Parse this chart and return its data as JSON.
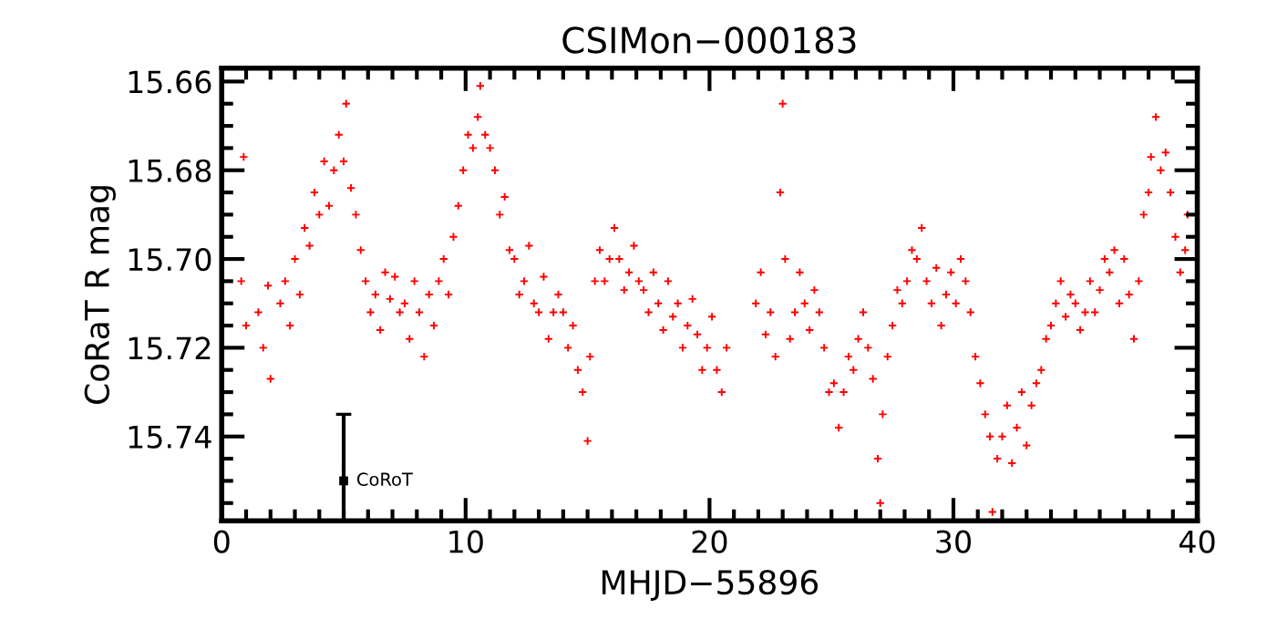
{
  "chart_data": {
    "type": "scatter",
    "title": "CSIMon−000183",
    "xlabel": "MHJD−55896",
    "ylabel": "CoRaT R mag",
    "xlim": [
      0,
      40
    ],
    "ylim": [
      15.759,
      15.657
    ],
    "xticks": [
      0,
      {
        "value": 1,
        "label": null
      },
      {
        "value": 2,
        "label": null
      },
      {
        "value": 3,
        "label": null
      },
      {
        "value": 4,
        "label": null
      },
      {
        "value": 5,
        "label": null
      },
      {
        "value": 6,
        "label": null
      },
      {
        "value": 7,
        "label": null
      },
      {
        "value": 8,
        "label": null
      },
      {
        "value": 9,
        "label": null
      },
      10,
      {
        "value": 11,
        "label": null
      },
      {
        "value": 12,
        "label": null
      },
      {
        "value": 13,
        "label": null
      },
      {
        "value": 14,
        "label": null
      },
      {
        "value": 15,
        "label": null
      },
      {
        "value": 16,
        "label": null
      },
      {
        "value": 17,
        "label": null
      },
      {
        "value": 18,
        "label": null
      },
      {
        "value": 19,
        "label": null
      },
      20,
      {
        "value": 21,
        "label": null
      },
      {
        "value": 22,
        "label": null
      },
      {
        "value": 23,
        "label": null
      },
      {
        "value": 24,
        "label": null
      },
      {
        "value": 25,
        "label": null
      },
      {
        "value": 26,
        "label": null
      },
      {
        "value": 27,
        "label": null
      },
      {
        "value": 28,
        "label": null
      },
      {
        "value": 29,
        "label": null
      },
      30,
      {
        "value": 31,
        "label": null
      },
      {
        "value": 32,
        "label": null
      },
      {
        "value": 33,
        "label": null
      },
      {
        "value": 34,
        "label": null
      },
      {
        "value": 35,
        "label": null
      },
      {
        "value": 36,
        "label": null
      },
      {
        "value": 37,
        "label": null
      },
      {
        "value": 38,
        "label": null
      },
      {
        "value": 39,
        "label": null
      },
      40
    ],
    "yticks": [
      15.66,
      {
        "value": 15.665,
        "label": null
      },
      {
        "value": 15.67,
        "label": null
      },
      {
        "value": 15.675,
        "label": null
      },
      15.68,
      {
        "value": 15.685,
        "label": null
      },
      {
        "value": 15.69,
        "label": null
      },
      {
        "value": 15.695,
        "label": null
      },
      {
        "value": 15.7,
        "label": "15.70"
      },
      {
        "value": 15.705,
        "label": null
      },
      {
        "value": 15.71,
        "label": null
      },
      {
        "value": 15.715,
        "label": null
      },
      15.72,
      {
        "value": 15.725,
        "label": null
      },
      {
        "value": 15.73,
        "label": null
      },
      {
        "value": 15.735,
        "label": null
      },
      15.74,
      {
        "value": 15.745,
        "label": null
      },
      {
        "value": 15.75,
        "label": null
      },
      {
        "value": 15.755,
        "label": null
      }
    ],
    "grid": false,
    "legend": false,
    "marker": "cross",
    "series": [
      {
        "color": "#ff0000",
        "x": [
          0.8,
          0.9,
          1.0,
          1.5,
          1.7,
          1.9,
          2.0,
          2.4,
          2.6,
          2.8,
          3.0,
          3.2,
          3.4,
          3.6,
          3.8,
          4.0,
          4.2,
          4.4,
          4.6,
          4.8,
          5.0,
          5.1,
          5.3,
          5.5,
          5.7,
          5.9,
          6.1,
          6.3,
          6.5,
          6.7,
          6.9,
          7.1,
          7.3,
          7.5,
          7.7,
          7.9,
          8.1,
          8.3,
          8.5,
          8.7,
          8.9,
          9.1,
          9.3,
          9.5,
          9.7,
          9.9,
          10.1,
          10.3,
          10.5,
          10.6,
          10.8,
          11.0,
          11.2,
          11.4,
          11.6,
          11.8,
          12.0,
          12.2,
          12.4,
          12.6,
          12.8,
          13.0,
          13.2,
          13.4,
          13.6,
          13.8,
          14.0,
          14.2,
          14.4,
          14.6,
          14.8,
          15.0,
          15.1,
          15.3,
          15.5,
          15.7,
          15.9,
          16.1,
          16.3,
          16.5,
          16.7,
          16.9,
          17.1,
          17.3,
          17.5,
          17.7,
          17.9,
          18.1,
          18.3,
          18.5,
          18.7,
          18.9,
          19.1,
          19.3,
          19.5,
          19.7,
          19.9,
          20.1,
          20.3,
          20.5,
          20.7,
          21.9,
          22.1,
          22.3,
          22.5,
          22.7,
          22.9,
          23.0,
          23.1,
          23.3,
          23.5,
          23.7,
          23.9,
          24.1,
          24.3,
          24.5,
          24.7,
          24.9,
          25.1,
          25.3,
          25.5,
          25.7,
          25.9,
          26.1,
          26.3,
          26.5,
          26.7,
          26.9,
          27.0,
          27.1,
          27.3,
          27.5,
          27.7,
          27.9,
          28.1,
          28.3,
          28.5,
          28.7,
          28.9,
          29.1,
          29.3,
          29.5,
          29.7,
          29.9,
          30.1,
          30.3,
          30.5,
          30.7,
          30.9,
          31.1,
          31.3,
          31.5,
          31.6,
          31.8,
          32.0,
          32.2,
          32.4,
          32.6,
          32.8,
          33.0,
          33.2,
          33.4,
          33.6,
          33.8,
          34.0,
          34.2,
          34.4,
          34.6,
          34.8,
          35.0,
          35.2,
          35.4,
          35.6,
          35.8,
          36.0,
          36.2,
          36.4,
          36.6,
          36.8,
          37.0,
          37.2,
          37.4,
          37.6,
          37.8,
          38.0,
          38.1,
          38.3,
          38.5,
          38.7,
          38.9,
          39.1,
          39.3,
          39.5,
          39.6
        ],
        "values": [
          15.705,
          15.677,
          15.715,
          15.712,
          15.72,
          15.706,
          15.727,
          15.71,
          15.705,
          15.715,
          15.7,
          15.708,
          15.693,
          15.697,
          15.685,
          15.69,
          15.678,
          15.688,
          15.68,
          15.672,
          15.678,
          15.665,
          15.684,
          15.69,
          15.698,
          15.705,
          15.712,
          15.708,
          15.716,
          15.703,
          15.709,
          15.704,
          15.712,
          15.71,
          15.718,
          15.705,
          15.712,
          15.722,
          15.708,
          15.715,
          15.705,
          15.7,
          15.708,
          15.695,
          15.688,
          15.68,
          15.672,
          15.675,
          15.668,
          15.661,
          15.672,
          15.675,
          15.68,
          15.69,
          15.686,
          15.698,
          15.7,
          15.708,
          15.705,
          15.697,
          15.71,
          15.712,
          15.704,
          15.718,
          15.712,
          15.708,
          15.712,
          15.72,
          15.715,
          15.725,
          15.73,
          15.741,
          15.722,
          15.705,
          15.698,
          15.705,
          15.7,
          15.693,
          15.7,
          15.707,
          15.703,
          15.697,
          15.705,
          15.707,
          15.712,
          15.703,
          15.71,
          15.716,
          15.705,
          15.713,
          15.71,
          15.72,
          15.715,
          15.709,
          15.717,
          15.725,
          15.72,
          15.713,
          15.725,
          15.73,
          15.72,
          15.71,
          15.703,
          15.717,
          15.712,
          15.722,
          15.685,
          15.665,
          15.7,
          15.718,
          15.712,
          15.703,
          15.71,
          15.716,
          15.707,
          15.712,
          15.72,
          15.73,
          15.728,
          15.738,
          15.73,
          15.722,
          15.725,
          15.718,
          15.712,
          15.72,
          15.727,
          15.745,
          15.755,
          15.735,
          15.722,
          15.715,
          15.707,
          15.71,
          15.705,
          15.698,
          15.7,
          15.693,
          15.705,
          15.71,
          15.702,
          15.715,
          15.708,
          15.703,
          15.71,
          15.7,
          15.705,
          15.712,
          15.722,
          15.728,
          15.735,
          15.74,
          15.757,
          15.745,
          15.74,
          15.733,
          15.746,
          15.738,
          15.73,
          15.742,
          15.733,
          15.728,
          15.725,
          15.718,
          15.715,
          15.71,
          15.705,
          15.713,
          15.708,
          15.71,
          15.716,
          15.712,
          15.705,
          15.712,
          15.707,
          15.7,
          15.703,
          15.698,
          15.71,
          15.7,
          15.708,
          15.718,
          15.705,
          15.69,
          15.685,
          15.677,
          15.668,
          15.68,
          15.676,
          15.685,
          15.695,
          15.703,
          15.698,
          15.69
        ]
      },
      {
        "name": "CoRoT",
        "color": "#000000",
        "x": [
          5
        ],
        "values": [
          15.75
        ],
        "marker": "square",
        "errors": [
          [
            15.735,
            15.759
          ]
        ]
      }
    ]
  }
}
